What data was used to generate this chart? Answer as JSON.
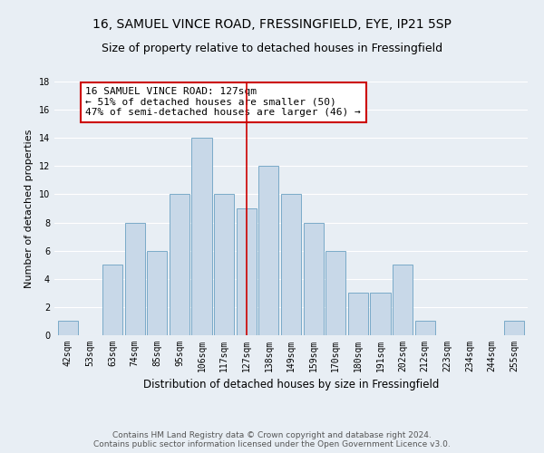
{
  "title": "16, SAMUEL VINCE ROAD, FRESSINGFIELD, EYE, IP21 5SP",
  "subtitle": "Size of property relative to detached houses in Fressingfield",
  "xlabel": "Distribution of detached houses by size in Fressingfield",
  "ylabel": "Number of detached properties",
  "categories": [
    "42sqm",
    "53sqm",
    "63sqm",
    "74sqm",
    "85sqm",
    "95sqm",
    "106sqm",
    "117sqm",
    "127sqm",
    "138sqm",
    "149sqm",
    "159sqm",
    "170sqm",
    "180sqm",
    "191sqm",
    "202sqm",
    "212sqm",
    "223sqm",
    "234sqm",
    "244sqm",
    "255sqm"
  ],
  "values": [
    1,
    0,
    5,
    8,
    6,
    10,
    14,
    10,
    9,
    12,
    10,
    8,
    6,
    3,
    3,
    5,
    1,
    0,
    0,
    0,
    1
  ],
  "highlight_index": 8,
  "bar_color": "#c8d8e8",
  "bar_edge_color": "#7aaac8",
  "highlight_line_color": "#cc0000",
  "annotation_text": "16 SAMUEL VINCE ROAD: 127sqm\n← 51% of detached houses are smaller (50)\n47% of semi-detached houses are larger (46) →",
  "annotation_box_color": "#ffffff",
  "annotation_box_edge_color": "#cc0000",
  "footer_line1": "Contains HM Land Registry data © Crown copyright and database right 2024.",
  "footer_line2": "Contains public sector information licensed under the Open Government Licence v3.0.",
  "ylim": [
    0,
    18
  ],
  "yticks": [
    0,
    2,
    4,
    6,
    8,
    10,
    12,
    14,
    16,
    18
  ],
  "background_color": "#e8eef4",
  "grid_color": "#ffffff",
  "title_fontsize": 10,
  "subtitle_fontsize": 9,
  "xlabel_fontsize": 8.5,
  "ylabel_fontsize": 8,
  "tick_fontsize": 7,
  "annotation_fontsize": 8,
  "footer_fontsize": 6.5
}
